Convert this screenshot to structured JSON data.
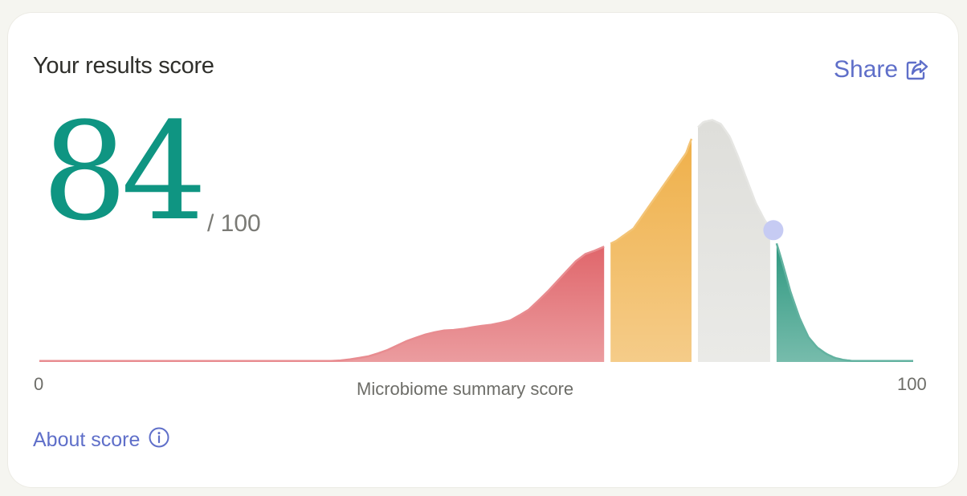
{
  "card": {
    "title": "Your results score",
    "share_label": "Share",
    "share_icon": "share-icon",
    "score_value": "84",
    "score_max": "/ 100",
    "about_label": "About score",
    "about_icon": "info-icon"
  },
  "chart_data": {
    "type": "area",
    "xlabel": "Microbiome summary score",
    "x_min_label": "0",
    "x_max_label": "100",
    "xlim": [
      0,
      100
    ],
    "marker_value": 84,
    "bands": [
      {
        "from": 0,
        "to": 65,
        "color": "#e0666b"
      },
      {
        "from": 65,
        "to": 75,
        "color": "#efb04a"
      },
      {
        "from": 75,
        "to": 84,
        "color": "#dededa"
      },
      {
        "from": 84,
        "to": 100,
        "color": "#2e9880"
      }
    ],
    "distribution": {
      "x": [
        0,
        34,
        36,
        38,
        40,
        42,
        44,
        46,
        48,
        50,
        52,
        54,
        56,
        58,
        60,
        62,
        64,
        65,
        66,
        68,
        70,
        72,
        74,
        75,
        76,
        77,
        78,
        79,
        80,
        81,
        82,
        83,
        84,
        85,
        86,
        87,
        88,
        89,
        90,
        91,
        92,
        93,
        94,
        95,
        100
      ],
      "y": [
        0.5,
        0.5,
        1.5,
        3,
        6,
        10,
        13,
        15,
        15.5,
        17,
        18,
        20,
        25,
        33,
        42,
        51,
        54,
        56,
        58,
        64,
        76,
        88,
        100,
        111,
        115,
        116,
        114,
        108,
        98,
        87,
        76,
        68,
        62,
        48,
        33,
        21,
        12,
        7,
        4,
        2,
        1,
        0.5,
        0.5,
        0.5,
        0.5
      ]
    },
    "marker_color": "#c6cbf3"
  }
}
